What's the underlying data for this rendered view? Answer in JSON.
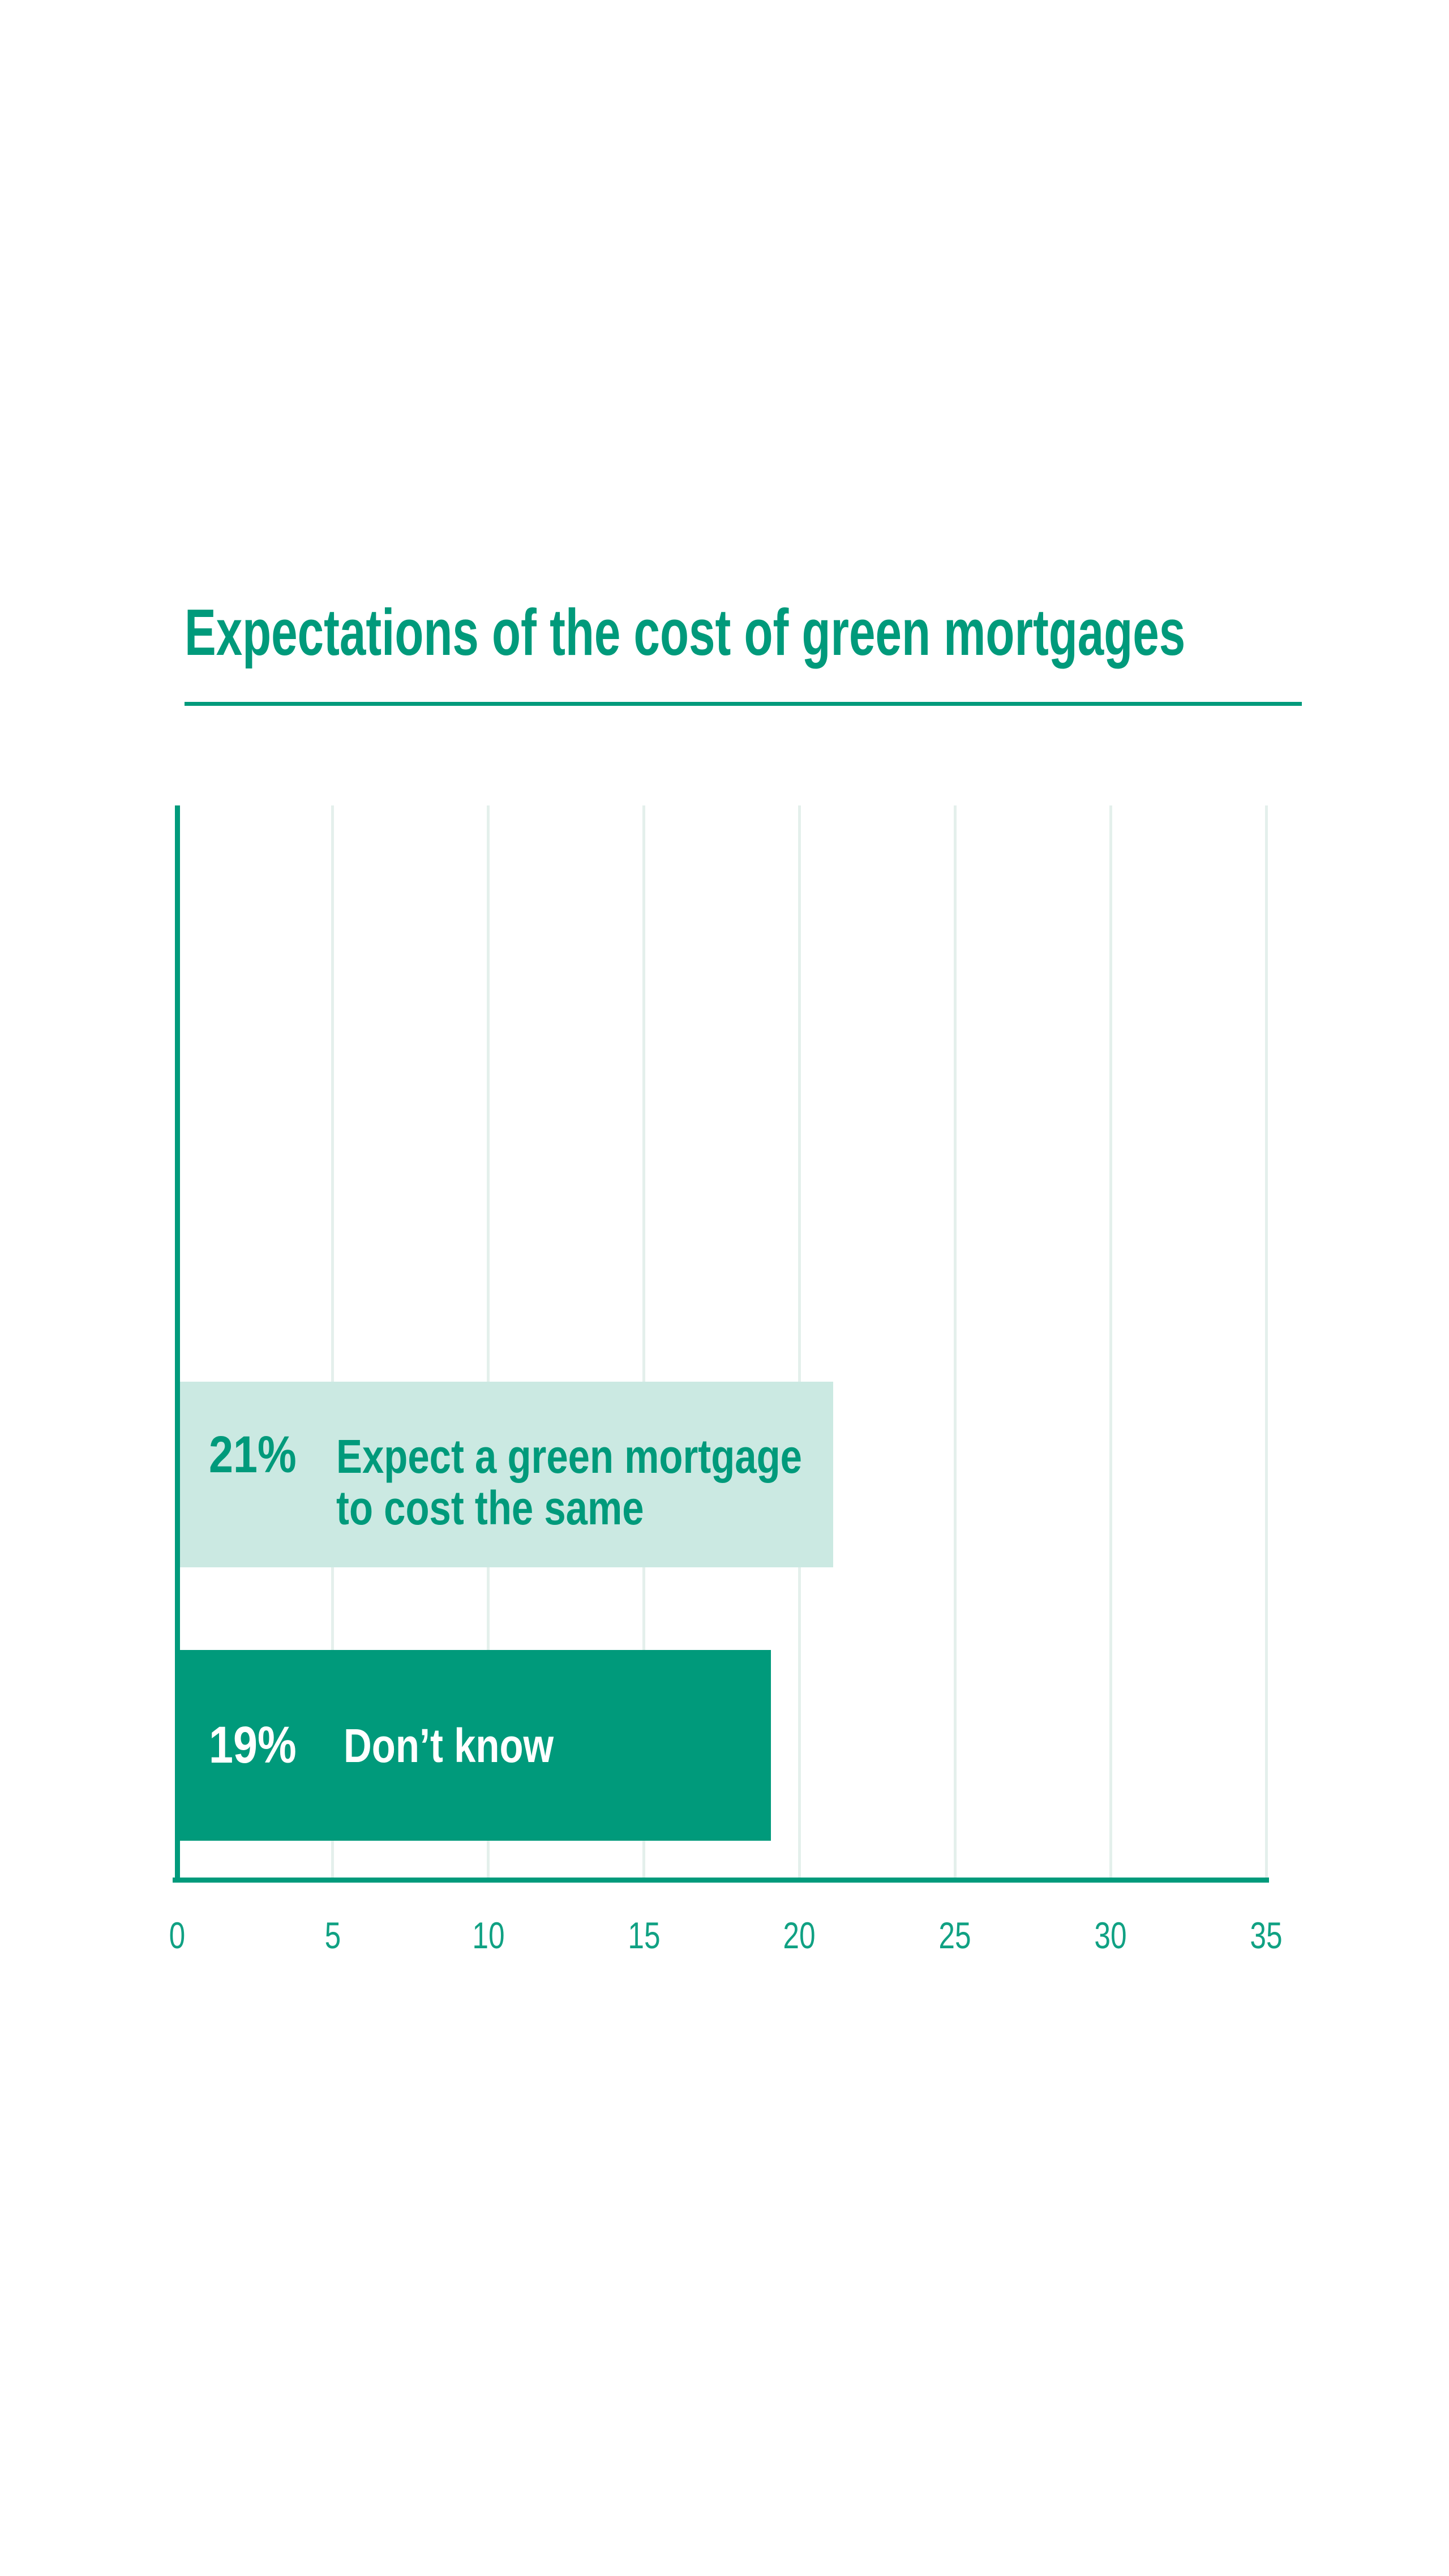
{
  "chart_data": {
    "type": "bar",
    "orientation": "horizontal",
    "title": "Expectations of the cost of green mortgages",
    "xlabel": "",
    "ylabel": "",
    "xlim": [
      0,
      35
    ],
    "x_ticks": [
      0,
      5,
      10,
      15,
      20,
      25,
      30,
      35
    ],
    "grid": "vertical",
    "legend": "none",
    "bars": [
      {
        "value": 21,
        "value_label": "21%",
        "label": "Expect a green mortgage to cost the same",
        "label_lines": [
          "Expect a green mortgage",
          "to cost the same"
        ],
        "bar_color": "#cbe9e2",
        "text_color": "#009a7b"
      },
      {
        "value": 19,
        "value_label": "19%",
        "label": "Don’t know",
        "label_lines": [
          "Don’t know"
        ],
        "bar_color": "#009a7b",
        "text_color": "#ffffff"
      }
    ],
    "colors": {
      "title": "#009a7b",
      "title_rule": "#009a7b",
      "axis": "#009a7b",
      "gridline": "#e4f0ec",
      "tick_label": "#10a183"
    }
  }
}
